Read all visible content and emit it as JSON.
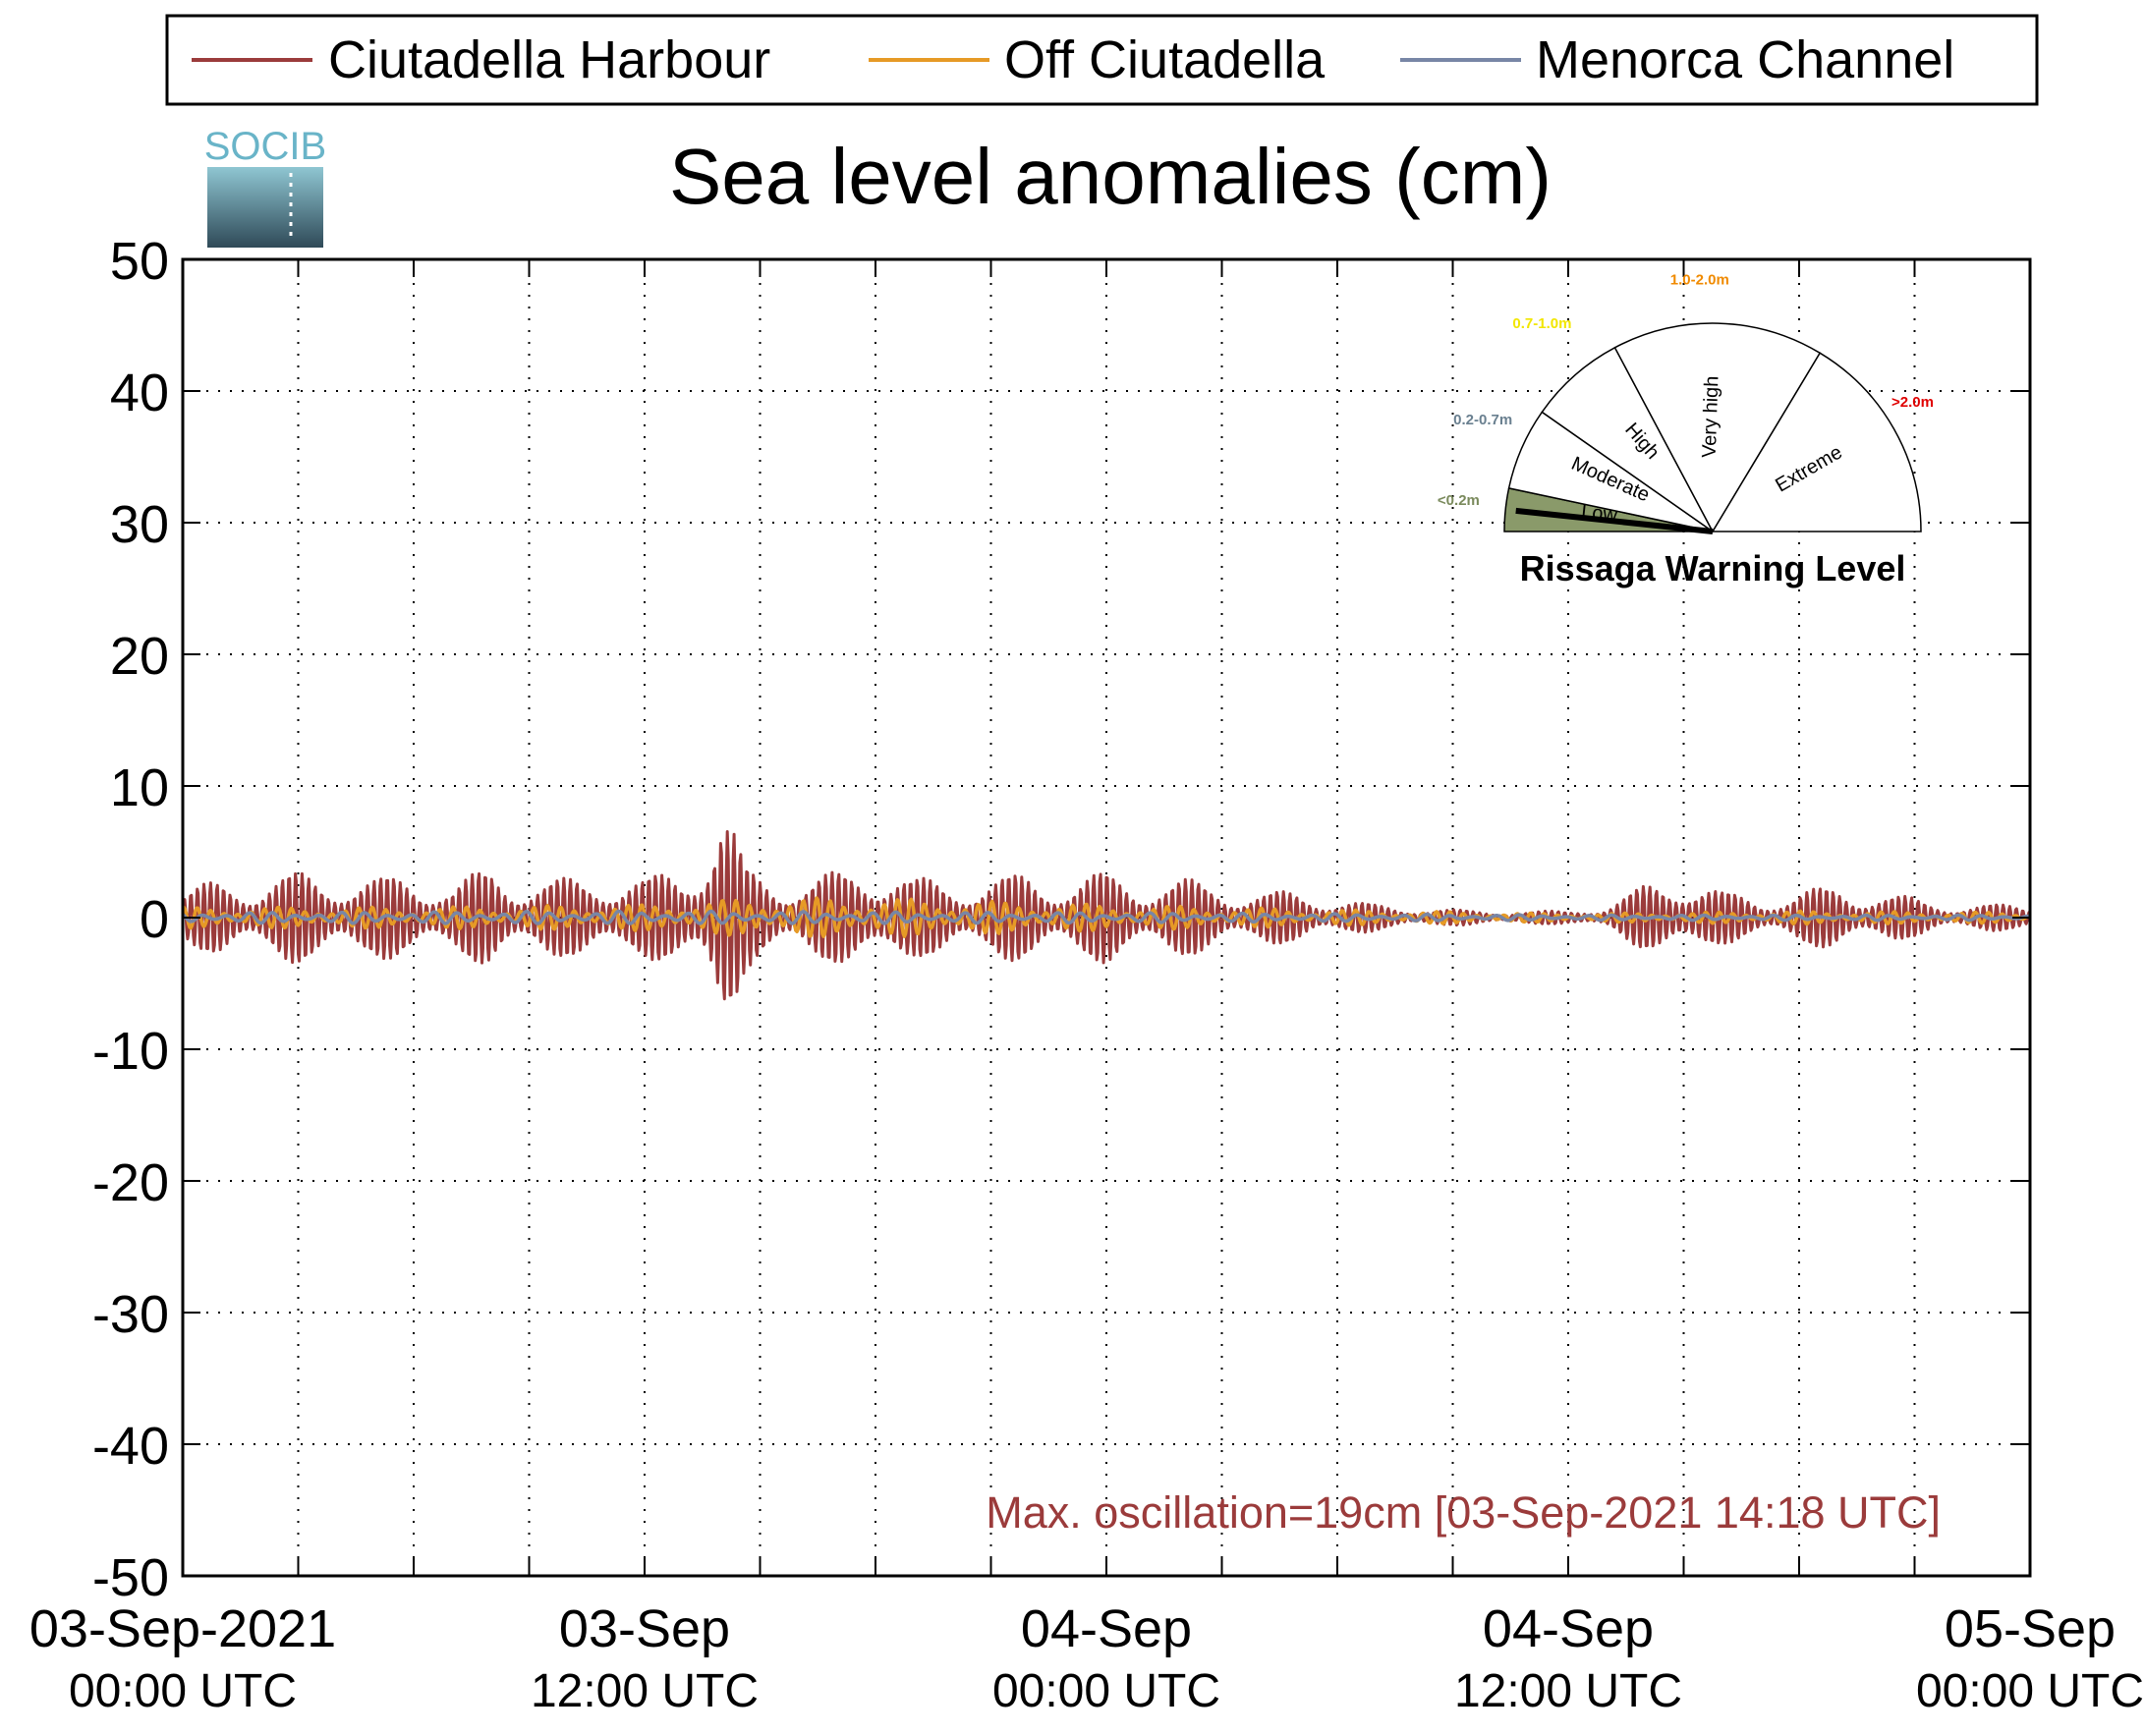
{
  "chart_data": {
    "type": "line",
    "title": "Sea level anomalies (cm)",
    "xlabel": "",
    "ylabel": "",
    "ylim": [
      -50,
      50
    ],
    "yticks": [
      50,
      40,
      30,
      20,
      10,
      0,
      -10,
      -20,
      -30,
      -40,
      -50
    ],
    "xlim_hours": [
      0,
      48
    ],
    "xtick_labels": [
      {
        "hour": 0,
        "line1": "03-Sep-2021",
        "line2": "00:00 UTC"
      },
      {
        "hour": 12,
        "line1": "03-Sep",
        "line2": "12:00 UTC"
      },
      {
        "hour": 24,
        "line1": "04-Sep",
        "line2": "00:00 UTC"
      },
      {
        "hour": 36,
        "line1": "04-Sep",
        "line2": "12:00 UTC"
      },
      {
        "hour": 48,
        "line1": "05-Sep",
        "line2": "00:00 UTC"
      }
    ],
    "minor_tick_hours": [
      3,
      6,
      9,
      15,
      18,
      21,
      27,
      30,
      33,
      39,
      42,
      45
    ],
    "grid": true,
    "legend_position": "top",
    "series": [
      {
        "name": "Ciutadella Harbour",
        "color": "#9b3b3b",
        "envelope_hours": [
          0,
          1,
          2,
          3,
          4,
          5,
          6,
          7,
          8,
          9,
          10,
          11,
          12,
          13,
          13.5,
          14,
          14.3,
          14.6,
          15,
          16,
          17,
          18,
          19,
          20,
          21,
          22,
          23,
          24,
          25,
          26,
          27,
          28,
          29,
          30,
          31,
          32,
          33,
          34,
          35,
          36,
          37,
          38,
          39,
          40,
          41,
          42,
          43,
          44,
          45,
          46,
          47,
          48
        ],
        "envelope_amplitude": [
          2,
          3,
          3,
          3.5,
          3.5,
          3,
          3.5,
          2.5,
          4,
          3,
          3,
          3.5,
          3,
          4,
          6,
          9,
          7,
          4,
          3.5,
          3,
          3.5,
          4.5,
          3,
          3,
          3,
          3.5,
          3,
          3.5,
          3,
          3,
          2.5,
          2,
          2,
          1.5,
          1,
          0.8,
          0.6,
          0.5,
          0.5,
          0.5,
          1,
          2.5,
          3.5,
          2,
          1.5,
          2,
          2.5,
          2,
          1.5,
          1,
          1,
          1
        ]
      },
      {
        "name": "Off Ciutadella",
        "color": "#e69a26",
        "envelope_hours": [
          0,
          6,
          12,
          15,
          18,
          24,
          30,
          36,
          42,
          48
        ],
        "envelope_amplitude": [
          0.8,
          0.8,
          1,
          1.5,
          1.5,
          1,
          0.6,
          0.3,
          0.5,
          0.4
        ]
      },
      {
        "name": "Menorca Channel",
        "color": "#7886a6",
        "envelope_hours": [
          0,
          12,
          24,
          36,
          48
        ],
        "envelope_amplitude": [
          0.4,
          0.5,
          0.4,
          0.2,
          0.2
        ]
      }
    ],
    "max_oscillation_cm": 19,
    "annotation": "Max. oscillation=19cm [03-Sep-2021 14:18 UTC]"
  },
  "logo": {
    "text": "SOCIB"
  },
  "warning_gauge": {
    "title": "Rissaga Warning Level",
    "current_level": "Low",
    "sectors": [
      {
        "name": "Low",
        "range": "<0.2m",
        "color": "#7a8a5c",
        "fill": "#8a9a6a",
        "filled": true
      },
      {
        "name": "Moderate",
        "range": "0.2-0.7m",
        "color": "#6a8090",
        "fill": "#ffffff",
        "filled": false
      },
      {
        "name": "High",
        "range": "0.7-1.0m",
        "color": "#f2e600",
        "fill": "#ffffff",
        "filled": false
      },
      {
        "name": "Very high",
        "range": "1.0-2.0m",
        "color": "#f08a00",
        "fill": "#ffffff",
        "filled": false
      },
      {
        "name": "Extreme",
        "range": ">2.0m",
        "color": "#e00000",
        "fill": "#ffffff",
        "filled": false
      }
    ]
  }
}
